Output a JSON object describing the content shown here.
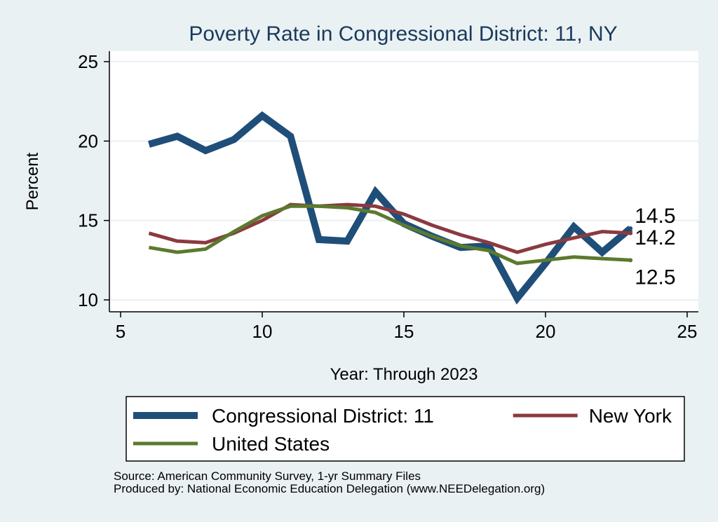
{
  "chart_data": {
    "type": "line",
    "title": "Poverty Rate in Congressional District:  11, NY",
    "xlabel": "Year: Through 2023",
    "ylabel": "Percent",
    "xlim": [
      5,
      25
    ],
    "ylim": [
      10,
      25
    ],
    "xticks": [
      "5",
      "10",
      "15",
      "20",
      "25"
    ],
    "yticks": [
      "10",
      "15",
      "20",
      "25"
    ],
    "grid": true,
    "legend_position": "bottom",
    "x": [
      6,
      7,
      8,
      9,
      10,
      11,
      12,
      13,
      14,
      15,
      16,
      17,
      18,
      19,
      20,
      21,
      22,
      23
    ],
    "series": [
      {
        "name": "Congressional District:  11",
        "color": "#1f4e79",
        "values": [
          19.8,
          20.3,
          19.4,
          20.1,
          21.6,
          20.3,
          13.8,
          13.7,
          16.8,
          14.8,
          14.0,
          13.3,
          13.4,
          10.1,
          12.3,
          14.6,
          13.0,
          14.5
        ],
        "end_label": "14.5"
      },
      {
        "name": "New York",
        "color": "#8b3a3f",
        "values": [
          14.2,
          13.7,
          13.6,
          14.2,
          15.0,
          16.0,
          15.9,
          16.0,
          15.9,
          15.4,
          14.7,
          14.1,
          13.6,
          13.0,
          13.5,
          13.9,
          14.3,
          14.2
        ],
        "end_label": "14.2"
      },
      {
        "name": "United States",
        "color": "#5b7a2e",
        "values": [
          13.3,
          13.0,
          13.2,
          14.3,
          15.3,
          15.9,
          15.9,
          15.8,
          15.5,
          14.7,
          14.0,
          13.4,
          13.1,
          12.3,
          12.5,
          12.7,
          12.6,
          12.5
        ],
        "end_label": "12.5"
      }
    ]
  },
  "source_note": "Source: American Community Survey, 1-yr Summary Files",
  "produced_note": "Produced by: National Economic Education Delegation (www.NEEDelegation.org)"
}
